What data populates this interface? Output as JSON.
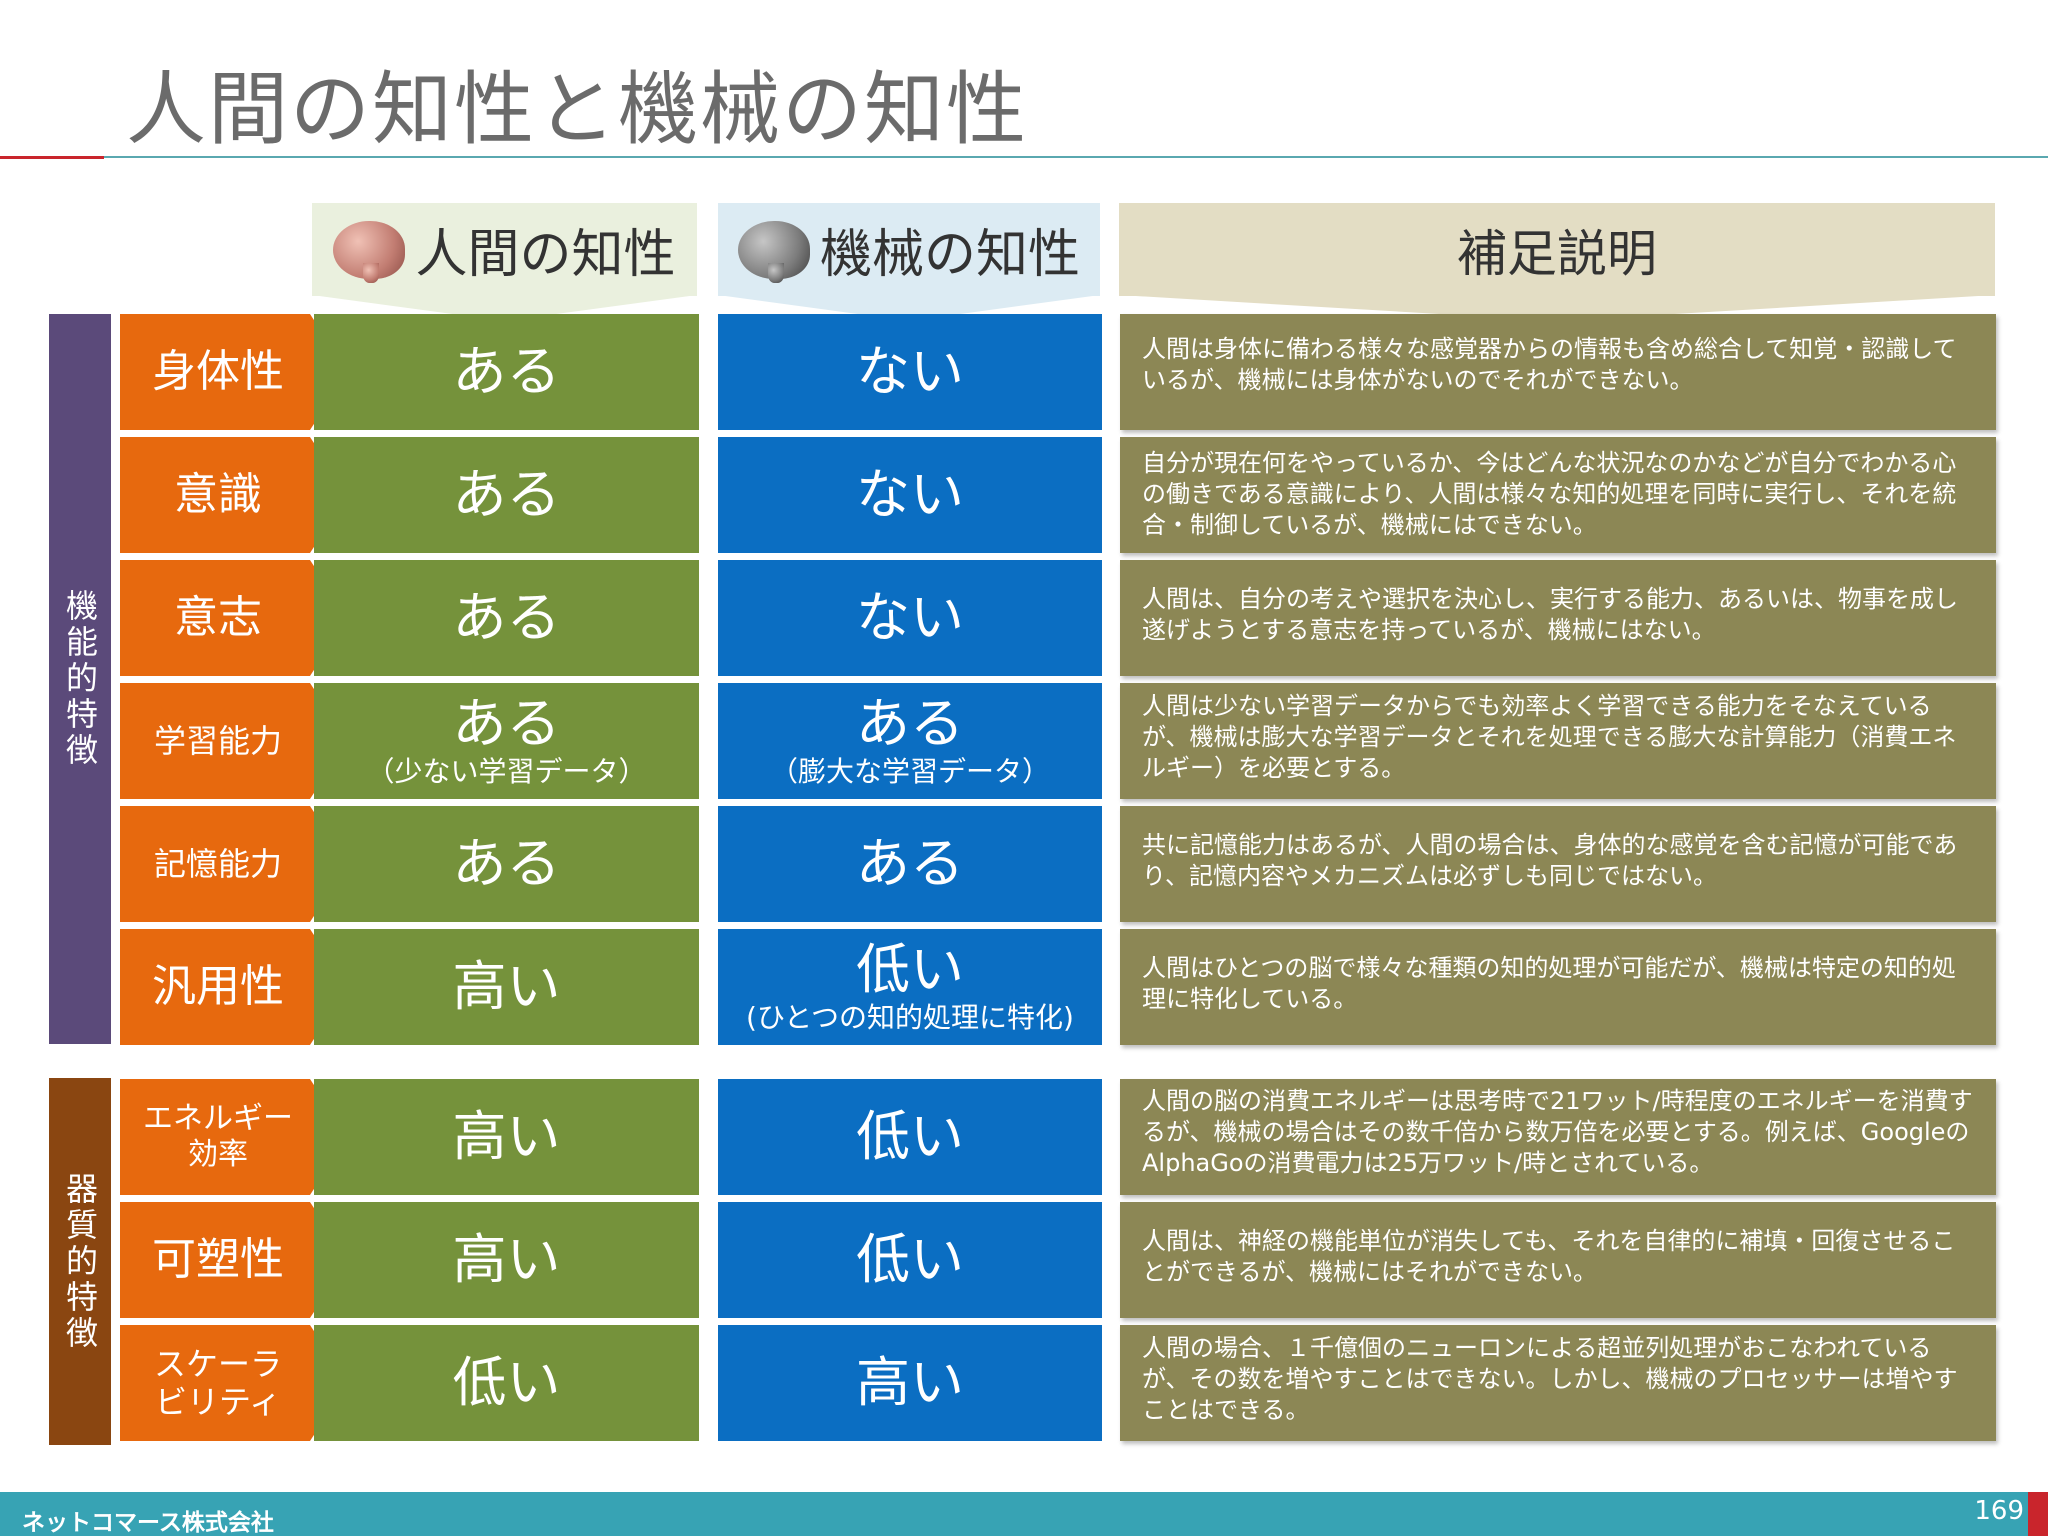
{
  "title": "人間の知性と機械の知性",
  "headers": {
    "human": "人間の知性",
    "machine": "機械の知性",
    "note": "補足説明"
  },
  "groups": {
    "functional": "機能的特徴",
    "material": "器質的特徴"
  },
  "rows": [
    {
      "label": "身体性",
      "human": "ある",
      "human_sub": "",
      "machine": "ない",
      "machine_sub": "",
      "note": "人間は身体に備わる様々な感覚器からの情報も含め総合して知覚・認識しているが、機械には身体がないのでそれができない。"
    },
    {
      "label": "意識",
      "human": "ある",
      "human_sub": "",
      "machine": "ない",
      "machine_sub": "",
      "note": "自分が現在何をやっているか、今はどんな状況なのかなどが自分でわかる心の働きである意識により、人間は様々な知的処理を同時に実行し、それを統合・制御しているが、機械にはできない。"
    },
    {
      "label": "意志",
      "human": "ある",
      "human_sub": "",
      "machine": "ない",
      "machine_sub": "",
      "note": "人間は、自分の考えや選択を決心し、実行する能力、あるいは、物事を成し遂げようとする意志を持っているが、機械にはない。"
    },
    {
      "label": "学習能力",
      "human": "ある",
      "human_sub": "（少ない学習データ）",
      "machine": "ある",
      "machine_sub": "（膨大な学習データ）",
      "note": "人間は少ない学習データからでも効率よく学習できる能力をそなえているが、機械は膨大な学習データとそれを処理できる膨大な計算能力（消費エネルギー）を必要とする。"
    },
    {
      "label": "記憶能力",
      "human": "ある",
      "human_sub": "",
      "machine": "ある",
      "machine_sub": "",
      "note": "共に記憶能力はあるが、人間の場合は、身体的な感覚を含む記憶が可能であり、記憶内容やメカニズムは必ずしも同じではない。"
    },
    {
      "label": "汎用性",
      "human": "高い",
      "human_sub": "",
      "machine": "低い",
      "machine_sub": "(ひとつの知的処理に特化)",
      "note": "人間はひとつの脳で様々な種類の知的処理が可能だが、機械は特定の知的処理に特化している。"
    },
    {
      "label": "エネルギー効率",
      "human": "高い",
      "human_sub": "",
      "machine": "低い",
      "machine_sub": "",
      "note": "人間の脳の消費エネルギーは思考時で21ワット/時程度のエネルギーを消費するが、機械の場合はその数千倍から数万倍を必要とする。例えば、GoogleのAlphaGoの消費電力は25万ワット/時とされている。"
    },
    {
      "label": "可塑性",
      "human": "高い",
      "human_sub": "",
      "machine": "低い",
      "machine_sub": "",
      "note": "人間は、神経の機能単位が消失しても、それを自律的に補填・回復させることができるが、機械にはそれができない。"
    },
    {
      "label": "スケーラビリティ",
      "human": "低い",
      "human_sub": "",
      "machine": "高い",
      "machine_sub": "",
      "note": "人間の場合、１千億個のニューロンによる超並列処理がおこなわれているが、その数を増やすことはできない。しかし、機械のプロセッサーは増やすことはできる。"
    }
  ],
  "footer": {
    "company": "ネットコマース株式会社",
    "page": "169"
  },
  "colors": {
    "label": "#e7690e",
    "human": "#75923b",
    "machine": "#0b6ec2",
    "note": "#8c8755",
    "functional_group": "#5b4a7a",
    "material_group": "#8a4611",
    "footer": "#37a3b4"
  }
}
